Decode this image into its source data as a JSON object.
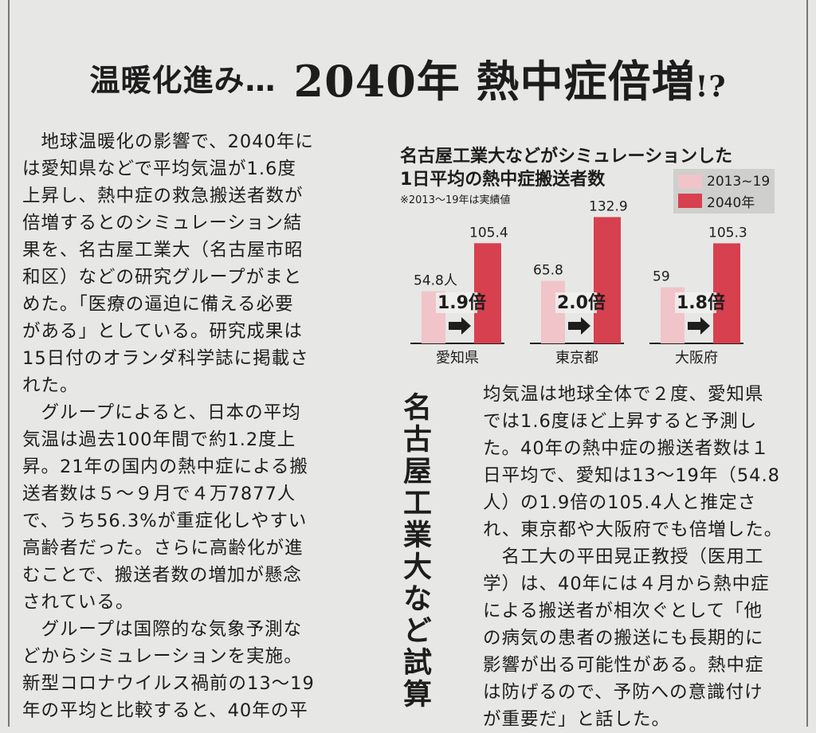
{
  "headline": {
    "lead": "温暖化進み…",
    "main": "2040年 熱中症倍増",
    "punct": "!?"
  },
  "article": {
    "left_lines": [
      "　地球温暖化の影響で、2040年に",
      "は愛知県などで平均気温が1.6度",
      "上昇し、熱中症の救急搬送者数が",
      "倍増するとのシミュレーション結",
      "果を、名古屋工業大（名古屋市昭",
      "和区）などの研究グループがまと",
      "めた。「医療の逼迫に備える必要",
      "がある」としている。研究成果は",
      "15日付のオランダ科学誌に掲載さ",
      "れた。",
      "　グループによると、日本の平均",
      "気温は過去100年間で約1.2度上",
      "昇。21年の国内の熱中症による搬",
      "送者数は５～９月で４万7877人",
      "で、うち56.3%が重症化しやすい",
      "高齢者だった。さらに高齢化が進",
      "むことで、搬送者数の増加が懸念",
      "されている。",
      "　グループは国際的な気象予測な",
      "どからシミュレーションを実施。",
      "新型コロナウイルス禍前の13～19",
      "年の平均と比較すると、40年の平"
    ],
    "right_lines": [
      "均気温は地球全体で２度、愛知県",
      "では1.6度ほど上昇すると予測し",
      "た。40年の熱中症の搬送者数は１",
      "日平均で、愛知は13～19年（54.8",
      "人）の1.9倍の105.4人と推定さ",
      "れ、東京都や大阪府でも倍増した。",
      "　名工大の平田晃正教授（医用工",
      "学）は、40年には４月から熱中症",
      "による搬送者が相次ぐとして「他",
      "の病気の患者の搬送にも長期的に",
      "影響が出る可能性がある。熱中症",
      "は防げるので、予防への意識付け",
      "が重要だ」と話した。"
    ],
    "byline_vertical": "名古屋工業大など試算"
  },
  "chart_data": {
    "type": "bar",
    "title": "名古屋工業大などがシミュレーションした",
    "subtitle": "1日平均の熱中症搬送者数",
    "note": "※2013～19年は実績値",
    "categories": [
      "愛知県",
      "東京都",
      "大阪府"
    ],
    "series": [
      {
        "name": "2013~19",
        "values": [
          54.8,
          65.8,
          59
        ],
        "color": "#f0c4c8"
      },
      {
        "name": "2040年",
        "values": [
          105.4,
          132.9,
          105.3
        ],
        "color": "#d7404f"
      }
    ],
    "value_labels": [
      [
        "54.8人",
        "105.4"
      ],
      [
        "65.8",
        "132.9"
      ],
      [
        "59",
        "105.3"
      ]
    ],
    "ratios": [
      "1.9倍",
      "2.0倍",
      "1.8倍"
    ],
    "legend_position": "top-right"
  }
}
